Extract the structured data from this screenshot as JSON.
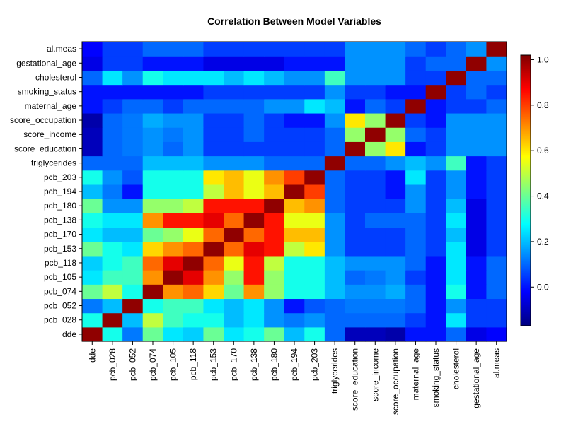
{
  "chart_data": {
    "type": "heatmap",
    "title": "Correlation Between Model Variables",
    "variables": [
      "dde",
      "pcb_028",
      "pcb_052",
      "pcb_074",
      "pcb_105",
      "pcb_118",
      "pcb_153",
      "pcb_170",
      "pcb_138",
      "pcb_180",
      "pcb_194",
      "pcb_203",
      "triglycerides",
      "score_education",
      "score_income",
      "score_occupation",
      "maternal_age",
      "smoking_status",
      "cholesterol",
      "gestational_age",
      "al.meas"
    ],
    "matrix": [
      [
        1.0,
        0.3,
        0.12,
        0.4,
        0.25,
        0.22,
        0.4,
        0.25,
        0.3,
        0.4,
        0.2,
        0.3,
        0.1,
        -0.1,
        -0.1,
        -0.12,
        0.0,
        0.0,
        0.1,
        -0.05,
        -0.02
      ],
      [
        0.3,
        1.0,
        0.2,
        0.5,
        0.35,
        0.3,
        0.3,
        0.2,
        0.25,
        0.15,
        0.12,
        0.15,
        0.1,
        0.1,
        0.1,
        0.1,
        0.05,
        0.0,
        0.25,
        0.05,
        0.05
      ],
      [
        0.12,
        0.2,
        1.0,
        0.3,
        0.35,
        0.35,
        0.25,
        0.2,
        0.25,
        0.15,
        0.0,
        0.08,
        0.1,
        0.12,
        0.12,
        0.12,
        0.1,
        0.0,
        0.15,
        0.05,
        0.05
      ],
      [
        0.4,
        0.5,
        0.3,
        1.0,
        0.7,
        0.75,
        0.62,
        0.4,
        0.7,
        0.45,
        0.3,
        0.3,
        0.2,
        0.15,
        0.15,
        0.18,
        0.1,
        0.0,
        0.3,
        0.0,
        0.1
      ],
      [
        0.25,
        0.35,
        0.35,
        0.7,
        1.0,
        0.9,
        0.7,
        0.45,
        0.85,
        0.45,
        0.3,
        0.3,
        0.2,
        0.1,
        0.12,
        0.15,
        0.05,
        0.0,
        0.25,
        0.0,
        0.1
      ],
      [
        0.22,
        0.3,
        0.35,
        0.75,
        0.9,
        1.0,
        0.75,
        0.55,
        0.85,
        0.5,
        0.3,
        0.3,
        0.2,
        0.15,
        0.15,
        0.15,
        0.1,
        0.0,
        0.25,
        0.0,
        0.1
      ],
      [
        0.4,
        0.3,
        0.25,
        0.62,
        0.7,
        0.75,
        1.0,
        0.75,
        0.9,
        0.85,
        0.5,
        0.6,
        0.15,
        0.05,
        0.05,
        0.05,
        0.1,
        0.05,
        0.25,
        -0.05,
        0.05
      ],
      [
        0.25,
        0.2,
        0.2,
        0.4,
        0.45,
        0.55,
        0.75,
        1.0,
        0.75,
        0.85,
        0.65,
        0.65,
        0.15,
        0.05,
        0.05,
        0.05,
        0.1,
        0.05,
        0.2,
        -0.05,
        0.05
      ],
      [
        0.3,
        0.25,
        0.25,
        0.7,
        0.85,
        0.85,
        0.9,
        0.75,
        1.0,
        0.85,
        0.55,
        0.55,
        0.15,
        0.05,
        0.1,
        0.1,
        0.1,
        0.05,
        0.25,
        -0.05,
        0.05
      ],
      [
        0.4,
        0.15,
        0.15,
        0.45,
        0.45,
        0.5,
        0.85,
        0.85,
        0.85,
        1.0,
        0.65,
        0.7,
        0.1,
        0.05,
        0.05,
        0.05,
        0.15,
        0.05,
        0.2,
        -0.05,
        0.05
      ],
      [
        0.2,
        0.12,
        0.0,
        0.3,
        0.3,
        0.3,
        0.5,
        0.65,
        0.55,
        0.65,
        1.0,
        0.8,
        0.1,
        0.05,
        0.05,
        0.0,
        0.15,
        0.05,
        0.15,
        0.0,
        0.05
      ],
      [
        0.3,
        0.15,
        0.08,
        0.3,
        0.3,
        0.3,
        0.6,
        0.65,
        0.55,
        0.7,
        0.8,
        1.0,
        0.1,
        0.05,
        0.05,
        0.0,
        0.25,
        0.05,
        0.15,
        0.0,
        0.05
      ],
      [
        0.1,
        0.1,
        0.1,
        0.2,
        0.2,
        0.2,
        0.15,
        0.15,
        0.15,
        0.1,
        0.1,
        0.1,
        1.0,
        0.1,
        0.1,
        0.15,
        0.2,
        0.15,
        0.35,
        0.0,
        0.05
      ],
      [
        -0.1,
        0.1,
        0.12,
        0.15,
        0.1,
        0.15,
        0.05,
        0.05,
        0.05,
        0.05,
        0.05,
        0.05,
        0.1,
        1.0,
        0.45,
        0.6,
        0.0,
        0.05,
        0.15,
        0.15,
        0.15
      ],
      [
        -0.1,
        0.1,
        0.12,
        0.15,
        0.12,
        0.15,
        0.05,
        0.05,
        0.1,
        0.05,
        0.05,
        0.05,
        0.1,
        0.45,
        1.0,
        0.45,
        0.1,
        0.05,
        0.15,
        0.15,
        0.15
      ],
      [
        -0.12,
        0.1,
        0.12,
        0.18,
        0.15,
        0.15,
        0.05,
        0.05,
        0.1,
        0.05,
        0.0,
        0.0,
        0.15,
        0.6,
        0.45,
        1.0,
        0.05,
        0.0,
        0.15,
        0.15,
        0.15
      ],
      [
        0.0,
        0.05,
        0.1,
        0.1,
        0.05,
        0.1,
        0.1,
        0.1,
        0.1,
        0.15,
        0.15,
        0.25,
        0.2,
        0.0,
        0.1,
        0.05,
        1.0,
        0.0,
        0.05,
        0.05,
        0.1
      ],
      [
        0.0,
        0.0,
        0.0,
        0.0,
        0.0,
        0.0,
        0.05,
        0.05,
        0.05,
        0.05,
        0.05,
        0.05,
        0.15,
        0.05,
        0.05,
        0.0,
        0.0,
        1.0,
        0.05,
        0.1,
        0.05
      ],
      [
        0.1,
        0.25,
        0.15,
        0.3,
        0.25,
        0.25,
        0.25,
        0.2,
        0.25,
        0.2,
        0.15,
        0.15,
        0.35,
        0.15,
        0.15,
        0.15,
        0.05,
        0.05,
        1.0,
        0.1,
        0.1
      ],
      [
        -0.05,
        0.05,
        0.05,
        0.0,
        0.0,
        0.0,
        -0.05,
        -0.05,
        -0.05,
        -0.05,
        0.0,
        0.0,
        0.0,
        0.15,
        0.15,
        0.15,
        0.05,
        0.1,
        0.1,
        1.0,
        0.15
      ],
      [
        -0.02,
        0.05,
        0.05,
        0.1,
        0.1,
        0.1,
        0.05,
        0.05,
        0.05,
        0.05,
        0.05,
        0.05,
        0.05,
        0.15,
        0.15,
        0.15,
        0.1,
        0.05,
        0.1,
        0.15,
        1.0
      ]
    ],
    "color_scale": {
      "min": -0.17,
      "max": 1.02,
      "ticks": [
        "0.0",
        "0.2",
        "0.4",
        "0.6",
        "0.8",
        "1.0"
      ],
      "tick_values": [
        0.0,
        0.2,
        0.4,
        0.6,
        0.8,
        1.0
      ],
      "colors": [
        "#00007F",
        "#0000FF",
        "#007FFF",
        "#00FFFF",
        "#7FFF7F",
        "#FFFF00",
        "#FF7F00",
        "#FF0000",
        "#7F0000"
      ]
    }
  }
}
